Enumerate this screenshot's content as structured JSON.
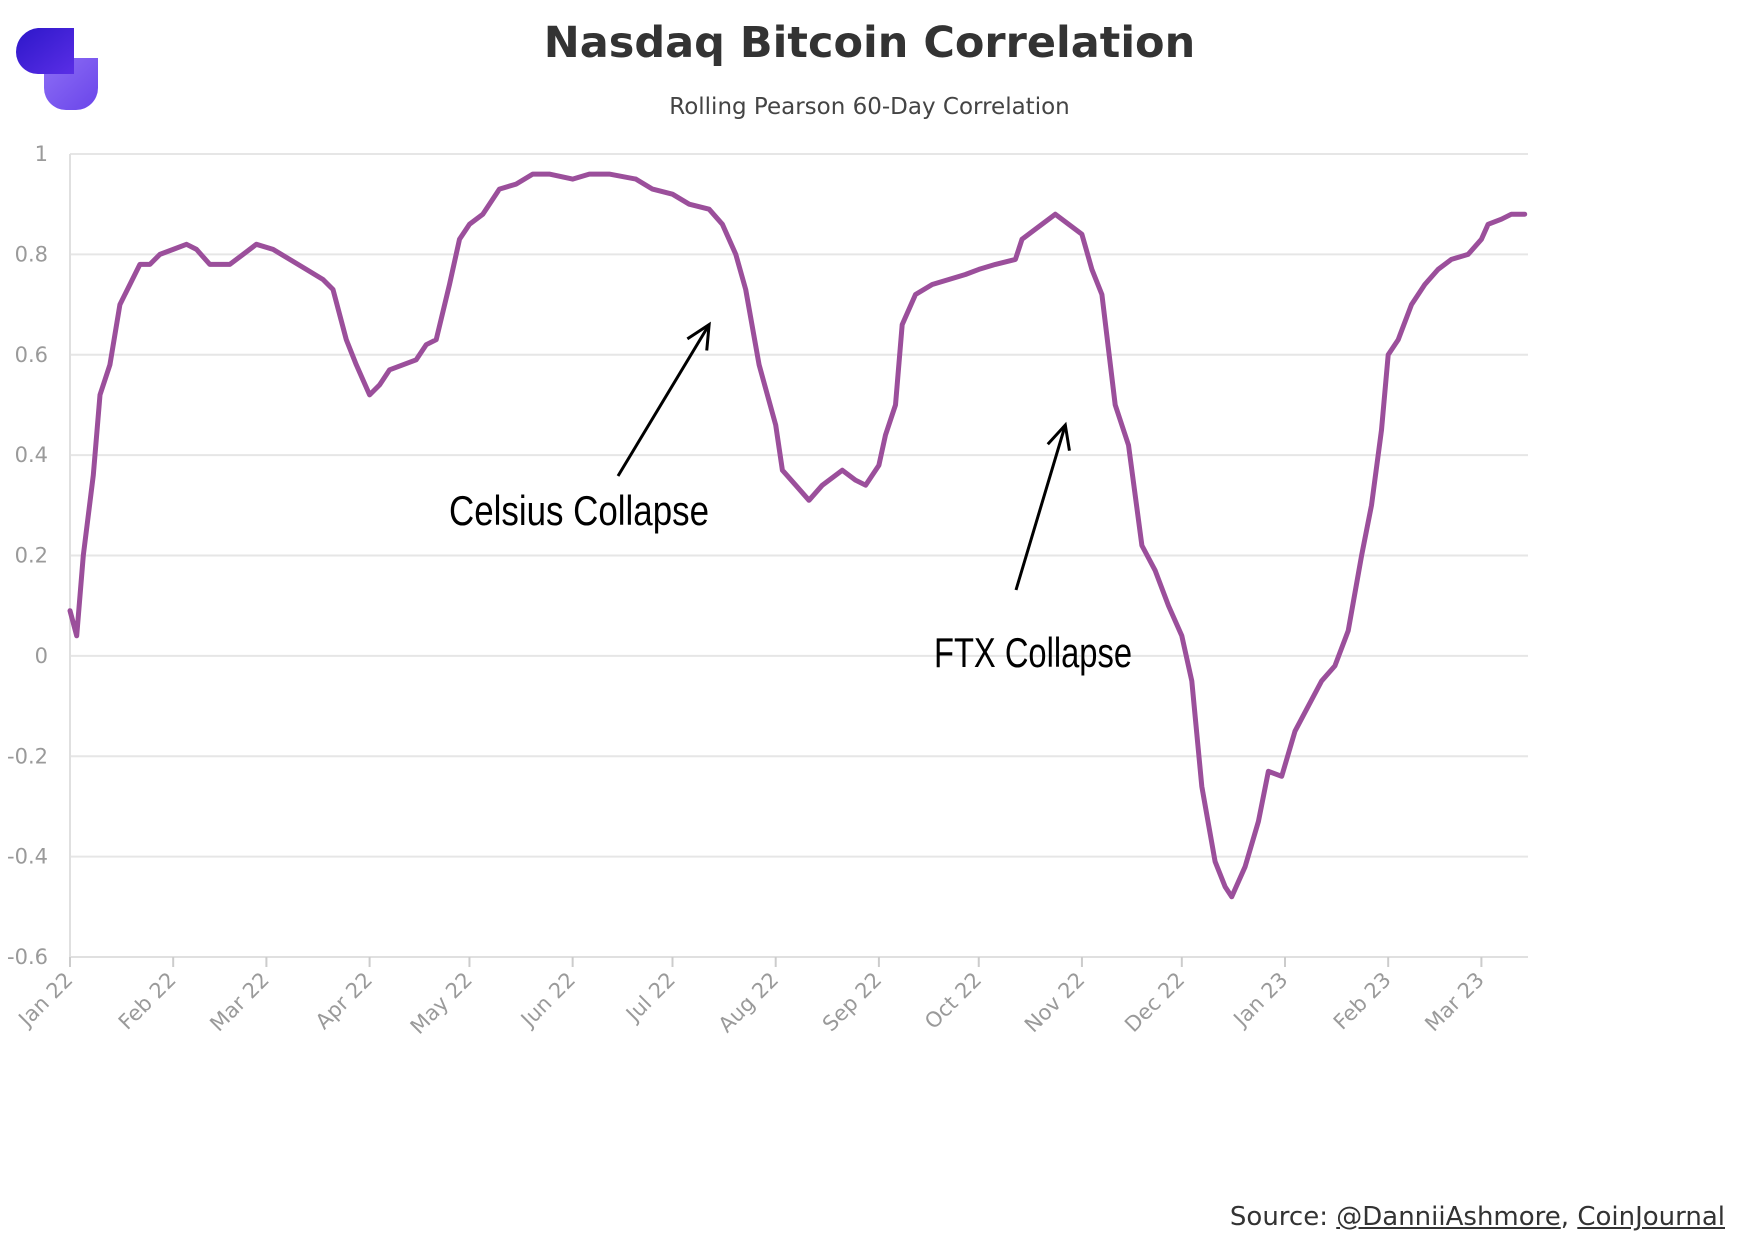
{
  "header": {
    "title": "Nasdaq Bitcoin Correlation",
    "subtitle": "Rolling Pearson 60-Day Correlation"
  },
  "logo": {
    "icon": "coinjournal-logo-icon",
    "colors": [
      "#3b1fd1",
      "#7a5cf0"
    ]
  },
  "source": {
    "prefix": "Source: ",
    "link1": "@DanniiAshmore",
    "separator": ", ",
    "link2": "CoinJournal"
  },
  "chart_data": {
    "type": "line",
    "title": "Nasdaq Bitcoin Correlation",
    "subtitle": "Rolling Pearson 60-Day Correlation",
    "xlabel": "",
    "ylabel": "",
    "ylim": [
      -0.6,
      1
    ],
    "yticks": [
      "1",
      "0.8",
      "0.6",
      "0.4",
      "0.2",
      "0",
      "-0.2",
      "-0.4",
      "-0.6"
    ],
    "ytick_values": [
      1,
      0.8,
      0.6,
      0.4,
      0.2,
      0,
      -0.2,
      -0.4,
      -0.6
    ],
    "xticks": [
      "Jan 22",
      "Feb 22",
      "Mar 22",
      "Apr 22",
      "May 22",
      "Jun 22",
      "Jul 22",
      "Aug 22",
      "Sep 22",
      "Oct 22",
      "Nov 22",
      "Dec 22",
      "Jan 23",
      "Feb 23",
      "Mar 23"
    ],
    "xtick_dates": [
      "2022-01-01",
      "2022-02-01",
      "2022-03-01",
      "2022-04-01",
      "2022-05-01",
      "2022-06-01",
      "2022-07-01",
      "2022-08-01",
      "2022-09-01",
      "2022-10-01",
      "2022-11-01",
      "2022-12-01",
      "2023-01-01",
      "2023-02-01",
      "2023-03-01"
    ],
    "grid": true,
    "line_color": "#9b4f9b",
    "series": [
      {
        "points": [
          [
            "2022-01-01",
            0.09
          ],
          [
            "2022-01-03",
            0.04
          ],
          [
            "2022-01-05",
            0.2
          ],
          [
            "2022-01-08",
            0.36
          ],
          [
            "2022-01-10",
            0.52
          ],
          [
            "2022-01-13",
            0.58
          ],
          [
            "2022-01-16",
            0.7
          ],
          [
            "2022-01-19",
            0.74
          ],
          [
            "2022-01-22",
            0.78
          ],
          [
            "2022-01-25",
            0.78
          ],
          [
            "2022-01-28",
            0.8
          ],
          [
            "2022-02-01",
            0.81
          ],
          [
            "2022-02-05",
            0.82
          ],
          [
            "2022-02-08",
            0.81
          ],
          [
            "2022-02-12",
            0.78
          ],
          [
            "2022-02-18",
            0.78
          ],
          [
            "2022-02-22",
            0.8
          ],
          [
            "2022-02-26",
            0.82
          ],
          [
            "2022-03-03",
            0.81
          ],
          [
            "2022-03-08",
            0.79
          ],
          [
            "2022-03-13",
            0.77
          ],
          [
            "2022-03-18",
            0.75
          ],
          [
            "2022-03-21",
            0.73
          ],
          [
            "2022-03-25",
            0.63
          ],
          [
            "2022-03-28",
            0.58
          ],
          [
            "2022-04-01",
            0.52
          ],
          [
            "2022-04-04",
            0.54
          ],
          [
            "2022-04-07",
            0.57
          ],
          [
            "2022-04-11",
            0.58
          ],
          [
            "2022-04-15",
            0.59
          ],
          [
            "2022-04-18",
            0.62
          ],
          [
            "2022-04-21",
            0.63
          ],
          [
            "2022-04-25",
            0.74
          ],
          [
            "2022-04-28",
            0.83
          ],
          [
            "2022-05-01",
            0.86
          ],
          [
            "2022-05-05",
            0.88
          ],
          [
            "2022-05-10",
            0.93
          ],
          [
            "2022-05-15",
            0.94
          ],
          [
            "2022-05-20",
            0.96
          ],
          [
            "2022-05-25",
            0.96
          ],
          [
            "2022-06-01",
            0.95
          ],
          [
            "2022-06-06",
            0.96
          ],
          [
            "2022-06-12",
            0.96
          ],
          [
            "2022-06-20",
            0.95
          ],
          [
            "2022-06-25",
            0.93
          ],
          [
            "2022-07-01",
            0.92
          ],
          [
            "2022-07-06",
            0.9
          ],
          [
            "2022-07-12",
            0.89
          ],
          [
            "2022-07-16",
            0.86
          ],
          [
            "2022-07-20",
            0.8
          ],
          [
            "2022-07-23",
            0.73
          ],
          [
            "2022-07-27",
            0.58
          ],
          [
            "2022-08-01",
            0.46
          ],
          [
            "2022-08-03",
            0.37
          ],
          [
            "2022-08-07",
            0.34
          ],
          [
            "2022-08-11",
            0.31
          ],
          [
            "2022-08-15",
            0.34
          ],
          [
            "2022-08-21",
            0.37
          ],
          [
            "2022-08-25",
            0.35
          ],
          [
            "2022-08-28",
            0.34
          ],
          [
            "2022-09-01",
            0.38
          ],
          [
            "2022-09-03",
            0.44
          ],
          [
            "2022-09-06",
            0.5
          ],
          [
            "2022-09-08",
            0.66
          ],
          [
            "2022-09-12",
            0.72
          ],
          [
            "2022-09-17",
            0.74
          ],
          [
            "2022-09-22",
            0.75
          ],
          [
            "2022-09-27",
            0.76
          ],
          [
            "2022-10-01",
            0.77
          ],
          [
            "2022-10-06",
            0.78
          ],
          [
            "2022-10-12",
            0.79
          ],
          [
            "2022-10-14",
            0.83
          ],
          [
            "2022-10-18",
            0.85
          ],
          [
            "2022-10-24",
            0.88
          ],
          [
            "2022-10-28",
            0.86
          ],
          [
            "2022-11-01",
            0.84
          ],
          [
            "2022-11-04",
            0.77
          ],
          [
            "2022-11-07",
            0.72
          ],
          [
            "2022-11-11",
            0.5
          ],
          [
            "2022-11-15",
            0.42
          ],
          [
            "2022-11-19",
            0.22
          ],
          [
            "2022-11-23",
            0.17
          ],
          [
            "2022-11-27",
            0.1
          ],
          [
            "2022-12-01",
            0.04
          ],
          [
            "2022-12-04",
            -0.05
          ],
          [
            "2022-12-07",
            -0.26
          ],
          [
            "2022-12-11",
            -0.41
          ],
          [
            "2022-12-14",
            -0.46
          ],
          [
            "2022-12-16",
            -0.48
          ],
          [
            "2022-12-20",
            -0.42
          ],
          [
            "2022-12-24",
            -0.33
          ],
          [
            "2022-12-27",
            -0.23
          ],
          [
            "2022-12-31",
            -0.24
          ],
          [
            "2023-01-04",
            -0.15
          ],
          [
            "2023-01-08",
            -0.1
          ],
          [
            "2023-01-12",
            -0.05
          ],
          [
            "2023-01-16",
            -0.02
          ],
          [
            "2023-01-20",
            0.05
          ],
          [
            "2023-01-24",
            0.2
          ],
          [
            "2023-01-27",
            0.3
          ],
          [
            "2023-01-30",
            0.45
          ],
          [
            "2023-02-01",
            0.6
          ],
          [
            "2023-02-04",
            0.63
          ],
          [
            "2023-02-08",
            0.7
          ],
          [
            "2023-02-12",
            0.74
          ],
          [
            "2023-02-16",
            0.77
          ],
          [
            "2023-02-20",
            0.79
          ],
          [
            "2023-02-25",
            0.8
          ],
          [
            "2023-03-01",
            0.83
          ],
          [
            "2023-03-03",
            0.86
          ],
          [
            "2023-03-07",
            0.87
          ],
          [
            "2023-03-10",
            0.88
          ],
          [
            "2023-03-14",
            0.88
          ]
        ]
      }
    ],
    "annotations": [
      {
        "text": "Celsius Collapse",
        "arrow_target": [
          "2022-07-12",
          0.66
        ]
      },
      {
        "text": "FTX Collapse",
        "arrow_target": [
          "2022-10-27",
          0.46
        ]
      }
    ]
  }
}
